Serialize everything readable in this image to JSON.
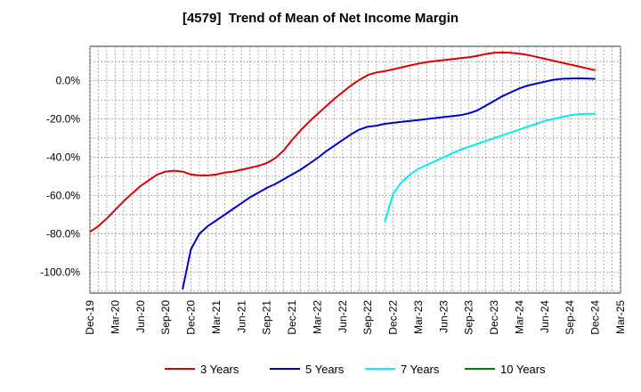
{
  "chart_data": {
    "type": "line",
    "title": "[4579]  Trend of Mean of Net Income Margin",
    "xlabel": "",
    "ylabel": "",
    "x_ticks": [
      "Dec-19",
      "Mar-20",
      "Jun-20",
      "Sep-20",
      "Dec-20",
      "Mar-21",
      "Jun-21",
      "Sep-21",
      "Dec-21",
      "Mar-22",
      "Jun-22",
      "Sep-22",
      "Dec-22",
      "Mar-23",
      "Jun-23",
      "Sep-23",
      "Dec-23",
      "Mar-24",
      "Jun-24",
      "Sep-24",
      "Dec-24",
      "Mar-25"
    ],
    "y_ticks": [
      0,
      -20,
      -40,
      -60,
      -80,
      -100
    ],
    "y_tick_labels": [
      "0.0%",
      "-20.0%",
      "-40.0%",
      "-60.0%",
      "-80.0%",
      "-100.0%"
    ],
    "ylim": [
      -111,
      18
    ],
    "grid": true,
    "legend_position": "bottom",
    "series": [
      {
        "name": "3 Years",
        "color": "#dd0000",
        "x": [
          "Dec-19",
          "Jan-20",
          "Feb-20",
          "Mar-20",
          "Apr-20",
          "May-20",
          "Jun-20",
          "Jul-20",
          "Aug-20",
          "Sep-20",
          "Oct-20",
          "Nov-20",
          "Dec-20",
          "Jan-21",
          "Feb-21",
          "Mar-21",
          "Apr-21",
          "May-21",
          "Jun-21",
          "Jul-21",
          "Aug-21",
          "Sep-21",
          "Oct-21",
          "Nov-21",
          "Dec-21",
          "Jan-22",
          "Feb-22",
          "Mar-22",
          "Apr-22",
          "May-22",
          "Jun-22",
          "Jul-22",
          "Aug-22",
          "Sep-22",
          "Oct-22",
          "Nov-22",
          "Dec-22",
          "Jan-23",
          "Feb-23",
          "Mar-23",
          "Apr-23",
          "May-23",
          "Jun-23",
          "Jul-23",
          "Aug-23",
          "Sep-23",
          "Oct-23",
          "Nov-23",
          "Dec-23",
          "Jan-24",
          "Feb-24",
          "Mar-24",
          "Apr-24",
          "May-24",
          "Jun-24",
          "Jul-24",
          "Aug-24",
          "Sep-24",
          "Oct-24",
          "Nov-24",
          "Dec-24"
        ],
        "y": [
          -79,
          -76,
          -72,
          -67.5,
          -63,
          -59,
          -55,
          -52,
          -49,
          -47.5,
          -47,
          -47.5,
          -49,
          -49.5,
          -49.5,
          -49,
          -48,
          -47.5,
          -46.5,
          -45.5,
          -44.5,
          -43,
          -40.5,
          -36.5,
          -31,
          -26,
          -21.5,
          -17.5,
          -13.5,
          -9.5,
          -6,
          -2.5,
          0.5,
          3,
          4.3,
          5,
          6,
          7,
          8,
          9,
          9.7,
          10.3,
          10.8,
          11.3,
          11.8,
          12.3,
          13,
          14,
          14.6,
          14.8,
          14.6,
          14.2,
          13.5,
          12.5,
          11.5,
          10.5,
          9.5,
          8.5,
          7.5,
          6.5,
          5.5
        ]
      },
      {
        "name": "5 Years",
        "color": "#0000cc",
        "x": [
          "Nov-20",
          "Dec-20",
          "Jan-21",
          "Feb-21",
          "Mar-21",
          "Apr-21",
          "May-21",
          "Jun-21",
          "Jul-21",
          "Aug-21",
          "Sep-21",
          "Oct-21",
          "Nov-21",
          "Dec-21",
          "Jan-22",
          "Feb-22",
          "Mar-22",
          "Apr-22",
          "May-22",
          "Jun-22",
          "Jul-22",
          "Aug-22",
          "Sep-22",
          "Oct-22",
          "Nov-22",
          "Dec-22",
          "Jan-23",
          "Feb-23",
          "Mar-23",
          "Apr-23",
          "May-23",
          "Jun-23",
          "Jul-23",
          "Aug-23",
          "Sep-23",
          "Oct-23",
          "Nov-23",
          "Dec-23",
          "Jan-24",
          "Feb-24",
          "Mar-24",
          "Apr-24",
          "May-24",
          "Jun-24",
          "Jul-24",
          "Aug-24",
          "Sep-24",
          "Oct-24",
          "Nov-24",
          "Dec-24"
        ],
        "y": [
          -109,
          -88,
          -80,
          -76,
          -73,
          -70,
          -67,
          -64,
          -61,
          -58.5,
          -56,
          -54,
          -51.5,
          -49,
          -46.5,
          -43.5,
          -40.5,
          -37,
          -34,
          -31,
          -28,
          -25.5,
          -24,
          -23.5,
          -22.5,
          -22,
          -21.5,
          -21,
          -20.5,
          -20,
          -19.5,
          -19,
          -18.5,
          -18,
          -17,
          -15.5,
          -13,
          -10.5,
          -8,
          -6,
          -4,
          -2.5,
          -1.5,
          -0.5,
          0.5,
          1,
          1.2,
          1.3,
          1.2,
          1
        ]
      },
      {
        "name": "7 Years",
        "color": "#00eeee",
        "x": [
          "Nov-22",
          "Dec-22",
          "Jan-23",
          "Feb-23",
          "Mar-23",
          "Apr-23",
          "May-23",
          "Jun-23",
          "Jul-23",
          "Aug-23",
          "Sep-23",
          "Oct-23",
          "Nov-23",
          "Dec-23",
          "Jan-24",
          "Feb-24",
          "Mar-24",
          "Apr-24",
          "May-24",
          "Jun-24",
          "Jul-24",
          "Aug-24",
          "Sep-24",
          "Oct-24",
          "Nov-24",
          "Dec-24"
        ],
        "y": [
          -74,
          -59,
          -53,
          -49,
          -46,
          -44,
          -42,
          -40,
          -38,
          -36,
          -34.5,
          -33,
          -31.5,
          -30,
          -28.5,
          -27,
          -25.5,
          -24,
          -22.5,
          -21,
          -20,
          -19,
          -18,
          -17.5,
          -17.3,
          -17.3
        ]
      },
      {
        "name": "10 Years",
        "color": "#008000",
        "x": [],
        "y": []
      }
    ]
  }
}
